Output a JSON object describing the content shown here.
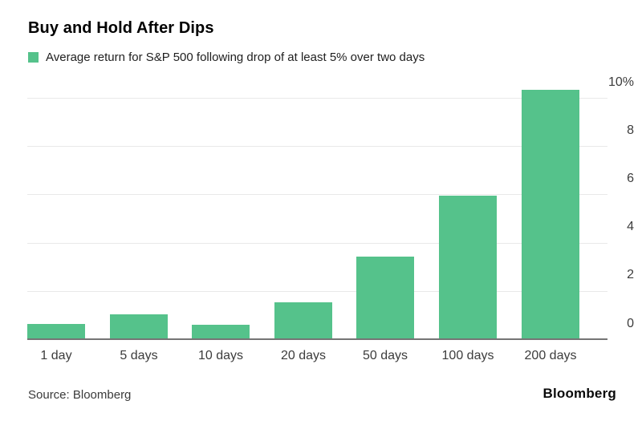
{
  "header": {
    "title": "Buy and Hold After Dips"
  },
  "legend": {
    "label": "Average return for S&P 500 following drop of at least 5% over two days"
  },
  "footer": {
    "source": "Source: Bloomberg",
    "brand": "Bloomberg"
  },
  "colors": {
    "bar": "#55C28B",
    "gridline": "#e9e9e9",
    "baseline": "#757575",
    "axis_text": "#3c3c3c",
    "title_text": "#000000"
  },
  "chart_data": {
    "type": "bar",
    "title": "Buy and Hold After Dips",
    "categories": [
      "1 day",
      "5 days",
      "10 days",
      "20 days",
      "50 days",
      "100 days",
      "200 days"
    ],
    "values": [
      0.6,
      1.0,
      0.55,
      1.5,
      3.4,
      5.9,
      10.3
    ],
    "series_name": "Average return for S&P 500 following drop of at least 5% over two days",
    "xlabel": "",
    "ylabel": "",
    "unit": "%",
    "y_ticks": [
      0,
      2,
      4,
      6,
      8,
      10
    ],
    "y_tick_labels": [
      "0",
      "2",
      "4",
      "6",
      "8",
      "10%"
    ],
    "ylim": [
      0,
      10
    ],
    "grid": true,
    "legend_position": "top-left",
    "y_axis_side": "right",
    "bar_color": "#55C28B"
  }
}
